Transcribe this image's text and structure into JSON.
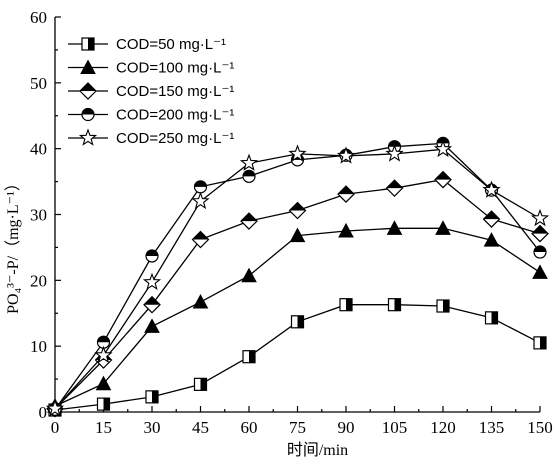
{
  "chart_data": {
    "type": "line",
    "xlabel": "时间/min",
    "ylabel": "PO₄³⁻-P/（mg·L⁻¹）",
    "x": [
      0,
      15,
      30,
      45,
      60,
      75,
      90,
      105,
      120,
      135,
      150
    ],
    "xticks": [
      0,
      15,
      30,
      45,
      60,
      75,
      90,
      105,
      120,
      135,
      150
    ],
    "yticks": [
      0,
      10,
      20,
      30,
      40,
      50,
      60
    ],
    "xlim": [
      0,
      150
    ],
    "ylim": [
      0,
      60
    ],
    "grid": false,
    "legend_position": "top-left",
    "series": [
      {
        "name": "COD=50 mg·L⁻¹",
        "marker": "half-square",
        "values": [
          0.3,
          1.2,
          2.3,
          4.2,
          8.4,
          13.7,
          16.3,
          16.3,
          16.1,
          14.3,
          10.5
        ]
      },
      {
        "name": "COD=100 mg·L⁻¹",
        "marker": "triangle",
        "values": [
          0.9,
          4.3,
          13.0,
          16.7,
          20.7,
          26.8,
          27.5,
          27.9,
          27.9,
          26.1,
          21.2
        ]
      },
      {
        "name": "COD=150 mg·L⁻¹",
        "marker": "half-diamond",
        "values": [
          0.5,
          7.9,
          16.3,
          26.2,
          29.0,
          30.6,
          33.1,
          34.0,
          35.3,
          29.3,
          27.1
        ]
      },
      {
        "name": "COD=200 mg·L⁻¹",
        "marker": "half-circle",
        "values": [
          0.4,
          10.6,
          23.7,
          34.2,
          35.8,
          38.3,
          39.0,
          40.3,
          40.8,
          33.7,
          24.3
        ]
      },
      {
        "name": "COD=250 mg·L⁻¹",
        "marker": "star",
        "values": [
          0.5,
          8.6,
          19.7,
          32.0,
          37.8,
          39.2,
          38.9,
          39.2,
          39.9,
          33.7,
          29.4
        ]
      }
    ]
  }
}
